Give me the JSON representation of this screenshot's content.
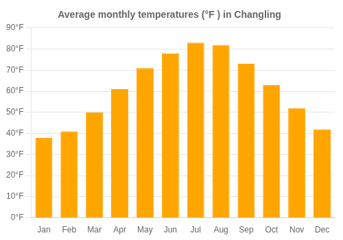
{
  "chart_data": {
    "type": "bar",
    "title": "Average monthly temperatures (°F ) in Changling",
    "categories": [
      "Jan",
      "Feb",
      "Mar",
      "Apr",
      "May",
      "Jun",
      "Jul",
      "Aug",
      "Sep",
      "Oct",
      "Nov",
      "Dec"
    ],
    "values": [
      38,
      41,
      50,
      61,
      71,
      78,
      83,
      82,
      73,
      63,
      52,
      42
    ],
    "color": "#FFA500",
    "ylim": [
      0,
      90
    ],
    "yticks": [
      {
        "value": 0,
        "label": "0°F"
      },
      {
        "value": 10,
        "label": "10°F"
      },
      {
        "value": 20,
        "label": "20°F"
      },
      {
        "value": 30,
        "label": "30°F"
      },
      {
        "value": 40,
        "label": "40°F"
      },
      {
        "value": 50,
        "label": "50°F"
      },
      {
        "value": 60,
        "label": "60°F"
      },
      {
        "value": 70,
        "label": "70°F"
      },
      {
        "value": 80,
        "label": "80°F"
      },
      {
        "value": 90,
        "label": "90°F"
      }
    ],
    "grid": true
  }
}
